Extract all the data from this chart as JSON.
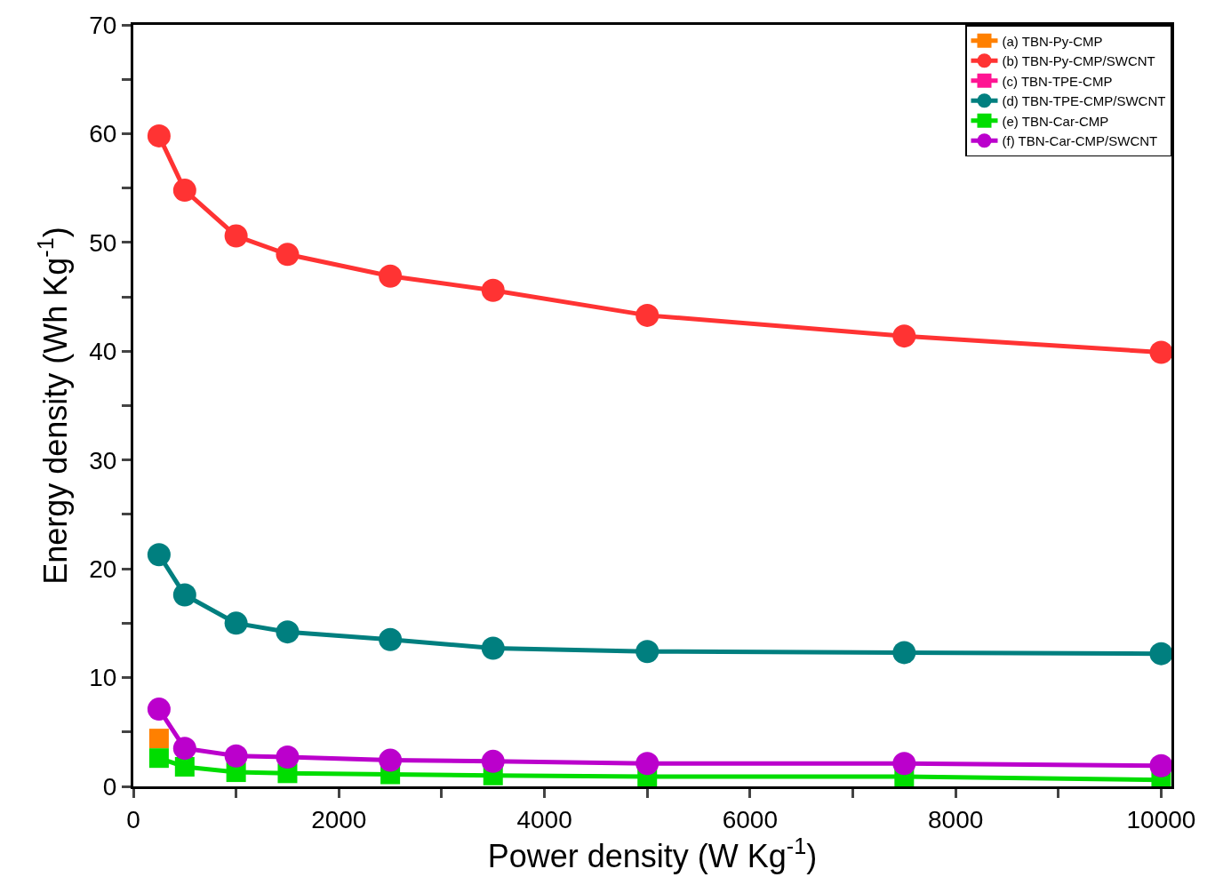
{
  "chart_data": {
    "type": "line",
    "xlabel": "Power density (W Kg$^{-1}$)",
    "ylabel": "Energy density (Wh Kg$^{-1}$)",
    "x": [
      250,
      500,
      1000,
      1500,
      2500,
      3500,
      5000,
      7500,
      10000
    ],
    "xlim": [
      0,
      10100
    ],
    "xticks": [
      0,
      {
        "value": 1000,
        "label": null
      },
      2000,
      {
        "value": 3000,
        "label": null
      },
      4000,
      {
        "value": 5000,
        "label": null
      },
      6000,
      {
        "value": 7000,
        "label": null
      },
      8000,
      {
        "value": 9000,
        "label": null
      },
      10000
    ],
    "ylim": [
      0,
      70
    ],
    "yticks": [
      0,
      {
        "value": 5,
        "label": null
      },
      10,
      {
        "value": 15,
        "label": null
      },
      20,
      {
        "value": 25,
        "label": null
      },
      30,
      {
        "value": 35,
        "label": null
      },
      40,
      {
        "value": 45,
        "label": null
      },
      50,
      {
        "value": 55,
        "label": null
      },
      60,
      {
        "value": 65,
        "label": null
      },
      70
    ],
    "grid": false,
    "legend": "top right",
    "series": [
      {
        "name": "(a) TBN-Py-CMP",
        "color": "#ff8000",
        "marker": "square",
        "values": [
          4.4,
          null,
          null,
          null,
          null,
          null,
          null,
          null,
          null
        ]
      },
      {
        "name": "(b) TBN-Py-CMP/SWCNT",
        "color": "#ff3333",
        "marker": "circle",
        "values": [
          59.8,
          54.8,
          50.6,
          48.9,
          46.9,
          45.6,
          43.3,
          41.4,
          39.9
        ]
      },
      {
        "name": "(c) TBN-TPE-CMP",
        "color": "#ff1493",
        "marker": "square",
        "values": [
          null,
          null,
          null,
          null,
          null,
          null,
          null,
          null,
          null
        ]
      },
      {
        "name": "(d) TBN-TPE-CMP/SWCNT",
        "color": "#007f7f",
        "marker": "circle",
        "values": [
          21.3,
          17.6,
          15.0,
          14.2,
          13.5,
          12.7,
          12.4,
          12.3,
          12.2
        ]
      },
      {
        "name": "(e) TBN-Car-CMP",
        "color": "#00dd00",
        "marker": "square",
        "values": [
          2.6,
          1.8,
          1.3,
          1.2,
          1.1,
          1.0,
          0.9,
          0.9,
          0.6
        ]
      },
      {
        "name": "(f) TBN-Car-CMP/SWCNT",
        "color": "#bb00cc",
        "marker": "circle",
        "values": [
          7.1,
          3.5,
          2.8,
          2.7,
          2.4,
          2.3,
          2.1,
          2.1,
          1.9
        ]
      }
    ]
  }
}
